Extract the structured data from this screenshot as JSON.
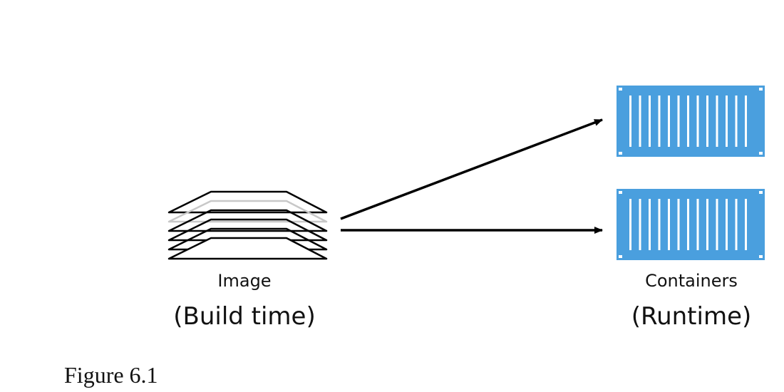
{
  "image": {
    "label": "Image",
    "phase": "(Build time)"
  },
  "containers": {
    "label": "Containers",
    "phase": "(Runtime)",
    "color": "#4a9fde"
  },
  "caption": "Figure 6.1",
  "icons": {
    "image": "layer-stack-icon",
    "container": "shipping-container-icon"
  }
}
